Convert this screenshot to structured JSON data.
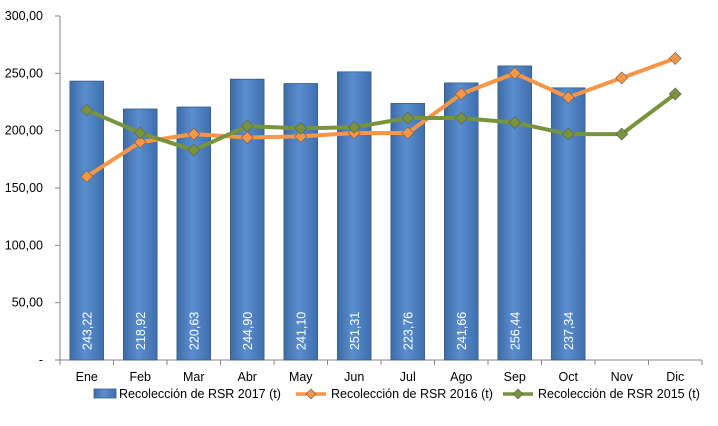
{
  "chart_data": {
    "type": "bar",
    "categories": [
      "Ene",
      "Feb",
      "Mar",
      "Abr",
      "May",
      "Jun",
      "Jul",
      "Ago",
      "Sep",
      "Oct",
      "Nov",
      "Dic"
    ],
    "ylim": [
      0,
      300
    ],
    "y_ticks": [
      {
        "value": 0,
        "label": "-"
      },
      {
        "value": 50,
        "label": "50,00"
      },
      {
        "value": 100,
        "label": "100,00"
      },
      {
        "value": 150,
        "label": "150,00"
      },
      {
        "value": 200,
        "label": "200,00"
      },
      {
        "value": 250,
        "label": "250,00"
      },
      {
        "value": 300,
        "label": "300,00"
      }
    ],
    "grid": false,
    "legend_position": "bottom",
    "series": [
      {
        "name": "Recolección de RSR 2017 (t)",
        "type": "bar",
        "color": "#4F81BD",
        "values": [
          243.22,
          218.92,
          220.63,
          244.9,
          241.1,
          251.31,
          223.76,
          241.66,
          256.44,
          237.34,
          null,
          null
        ],
        "labels": [
          "243,22",
          "218,92",
          "220,63",
          "244,90",
          "241,10",
          "251,31",
          "223,76",
          "241,66",
          "256,44",
          "237,34",
          "",
          ""
        ]
      },
      {
        "name": "Recolección de RSR 2016 (t)",
        "type": "line",
        "color": "#F79646",
        "values": [
          160,
          190,
          197,
          194,
          195,
          198,
          198,
          232,
          250,
          229,
          246,
          263
        ]
      },
      {
        "name": "Recolección de RSR 2015 (t)",
        "type": "line",
        "color": "#77933C",
        "values": [
          218,
          198,
          183,
          204,
          202,
          203,
          211,
          211,
          207,
          197,
          197,
          232
        ]
      }
    ]
  }
}
